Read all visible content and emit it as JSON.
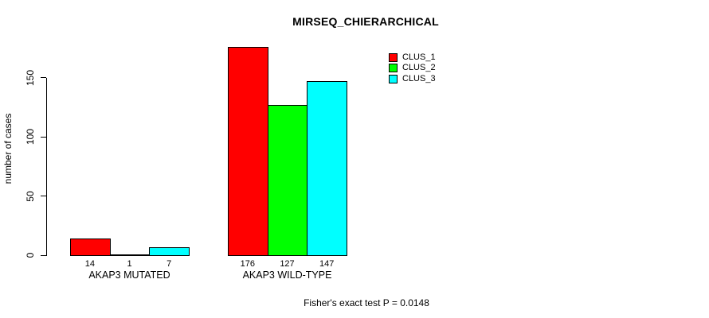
{
  "chart_data": {
    "type": "bar",
    "title": "MIRSEQ_CHIERARCHICAL",
    "ylabel": "number of cases",
    "xlabel": "",
    "ylim": [
      0,
      176
    ],
    "y_ticks": [
      0,
      50,
      100,
      150
    ],
    "grid": false,
    "legend_position": "top-right",
    "categories": [
      "AKAP3 MUTATED",
      "AKAP3 WILD-TYPE"
    ],
    "series": [
      {
        "name": "CLUS_1",
        "color": "#FF0000",
        "values": [
          14,
          176
        ]
      },
      {
        "name": "CLUS_2",
        "color": "#00FF00",
        "values": [
          1,
          127
        ]
      },
      {
        "name": "CLUS_3",
        "color": "#00FFFF",
        "values": [
          7,
          147
        ]
      }
    ],
    "bar_value_labels": true,
    "annotation": "Fisher's exact test P = 0.0148",
    "colors": {
      "background": "#FFFFFF",
      "axis": "#000000",
      "text": "#000000",
      "bar_border": "#000000"
    }
  }
}
